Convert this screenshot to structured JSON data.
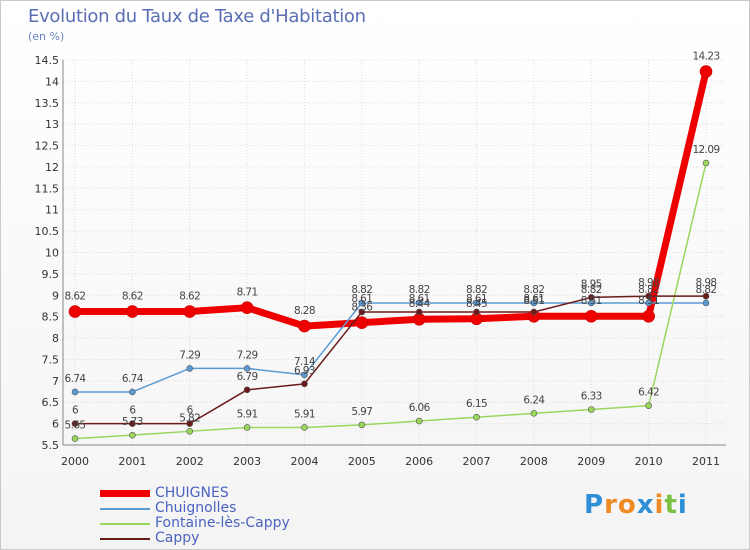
{
  "title": "Evolution du Taux de Taxe d'Habitation",
  "subtitle": "(en %)",
  "logo": {
    "letters": [
      "P",
      "r",
      "o",
      "x",
      "i",
      "t",
      "i"
    ],
    "colors": [
      "#2f8fd6",
      "#f08a24",
      "#f08a24",
      "#2f8fd6",
      "#f08a24",
      "#7cc242",
      "#2f8fd6"
    ]
  },
  "chart_data": {
    "type": "line",
    "title": "Evolution du Taux de Taxe d'Habitation",
    "ylabel": "(en %)",
    "categories": [
      "2000",
      "2001",
      "2002",
      "2003",
      "2004",
      "2005",
      "2006",
      "2007",
      "2008",
      "2009",
      "2010",
      "2011"
    ],
    "ylim": [
      5.5,
      14.5
    ],
    "yticks": [
      "5.5",
      "6",
      "6.5",
      "7",
      "7.5",
      "8",
      "8.5",
      "9",
      "9.5",
      "10",
      "10.5",
      "11",
      "11.5",
      "12",
      "12.5",
      "13",
      "13.5",
      "14",
      "14.5"
    ],
    "series": [
      {
        "name": "CHUIGNES",
        "color": "#ee0000",
        "width": 7,
        "values": [
          8.62,
          8.62,
          8.62,
          8.71,
          8.28,
          8.36,
          8.44,
          8.45,
          8.51,
          8.51,
          8.51,
          14.23
        ],
        "labels": [
          "8.62",
          "8.62",
          "8.62",
          "8.71",
          "8.28",
          "8.36",
          "8.44",
          "8.45",
          "8.51",
          "8.51",
          "8.51",
          "14.23"
        ]
      },
      {
        "name": "Chuignolles",
        "color": "#5b9bd5",
        "width": 1.5,
        "values": [
          6.74,
          6.74,
          7.29,
          7.29,
          7.14,
          8.82,
          8.82,
          8.82,
          8.82,
          8.82,
          8.82,
          8.82
        ],
        "labels": [
          "6.74",
          "6.74",
          "7.29",
          "7.29",
          "7.14",
          "8.82",
          "8.82",
          "8.82",
          "8.82",
          "8.82",
          "8.82",
          "8.82"
        ]
      },
      {
        "name": "Fontaine-lès-Cappy",
        "color": "#9ad65c",
        "width": 1.5,
        "values": [
          5.65,
          5.73,
          5.82,
          5.91,
          5.91,
          5.97,
          6.06,
          6.15,
          6.24,
          6.33,
          6.42,
          12.09
        ],
        "labels": [
          "5.65",
          "5.73",
          "5.82",
          "5.91",
          "5.91",
          "5.97",
          "6.06",
          "6.15",
          "6.24",
          "6.33",
          "6.42",
          "12.09"
        ]
      },
      {
        "name": "Cappy",
        "color": "#6b1a1a",
        "width": 1.5,
        "values": [
          6,
          6,
          6,
          6.79,
          6.93,
          8.61,
          8.61,
          8.61,
          8.61,
          8.95,
          8.98,
          8.98
        ],
        "labels": [
          "6",
          "6",
          "6",
          "6.79",
          "6.93",
          "8.61",
          "8.61",
          "8.61",
          "8.61",
          "8.95",
          "8.98",
          "8.98"
        ]
      }
    ],
    "legend": [
      "CHUIGNES",
      "Chuignolles",
      "Fontaine-lès-Cappy",
      "Cappy"
    ],
    "legend_position": "bottom-left",
    "grid": true
  }
}
